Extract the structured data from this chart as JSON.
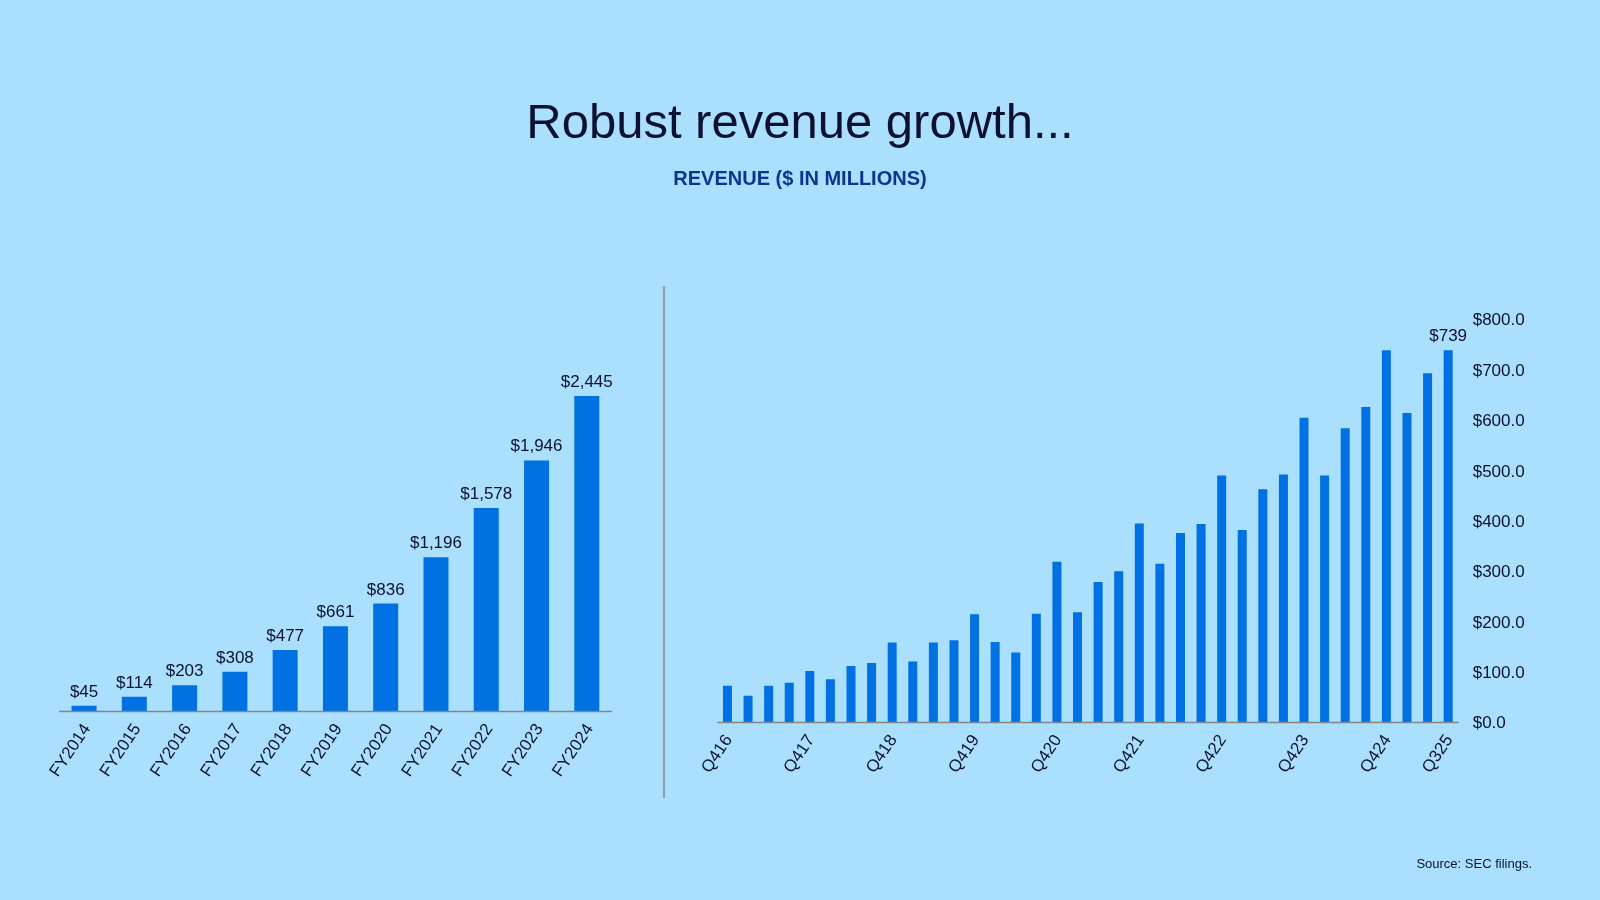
{
  "chart_data": [
    {
      "type": "other",
      "title": "Robust revenue growth...",
      "subtitle": "REVENUE ($ IN MILLIONS)"
    },
    {
      "type": "bar",
      "categories": [
        "FY2014",
        "FY2015",
        "FY2016",
        "FY2017",
        "FY2018",
        "FY2019",
        "FY2020",
        "FY2021",
        "FY2022",
        "FY2023",
        "FY2024"
      ],
      "values": [
        45,
        114,
        203,
        308,
        477,
        661,
        836,
        1196,
        1578,
        1946,
        2445
      ],
      "value_labels": [
        "$45",
        "$114",
        "$203",
        "$308",
        "$477",
        "$661",
        "$836",
        "$1,196",
        "$1,578",
        "$1,946",
        "$2,445"
      ],
      "color": "#0071e3",
      "tick_labels": "x"
    },
    {
      "type": "bar",
      "categories": [
        "Q416",
        null,
        null,
        null,
        "Q417",
        null,
        null,
        null,
        "Q418",
        null,
        null,
        null,
        "Q419",
        null,
        null,
        null,
        "Q420",
        null,
        null,
        null,
        "Q421",
        null,
        null,
        null,
        "Q422",
        null,
        null,
        null,
        "Q423",
        null,
        null,
        null,
        "Q424",
        null,
        null,
        "Q325"
      ],
      "values": [
        73,
        53,
        73,
        79,
        102,
        86,
        112,
        118,
        159,
        121,
        159,
        163,
        215,
        160,
        139,
        216,
        319,
        219,
        279,
        300,
        395,
        315,
        376,
        394,
        490,
        382,
        463,
        492,
        605,
        490,
        584,
        626,
        739,
        614,
        693,
        739
      ],
      "value_labels": [
        null,
        null,
        null,
        null,
        null,
        null,
        null,
        null,
        null,
        null,
        null,
        null,
        null,
        null,
        null,
        null,
        null,
        null,
        null,
        null,
        null,
        null,
        null,
        null,
        null,
        null,
        null,
        null,
        null,
        null,
        null,
        null,
        null,
        null,
        null,
        "$739"
      ],
      "color": "#0071e3",
      "ylim": [
        0,
        800
      ],
      "yticks": [
        {
          "value": 0,
          "label": "$0.0"
        },
        {
          "value": 100,
          "label": "$100.0"
        },
        {
          "value": 200,
          "label": "$200.0"
        },
        {
          "value": 300,
          "label": "$300.0"
        },
        {
          "value": 400,
          "label": "$400.0"
        },
        {
          "value": 500,
          "label": "$500.0"
        },
        {
          "value": 600,
          "label": "$600.0"
        },
        {
          "value": 700,
          "label": "$700.0"
        },
        {
          "value": 800,
          "label": "$800.0"
        }
      ],
      "annotations": [
        "Source: SEC filings."
      ]
    }
  ]
}
